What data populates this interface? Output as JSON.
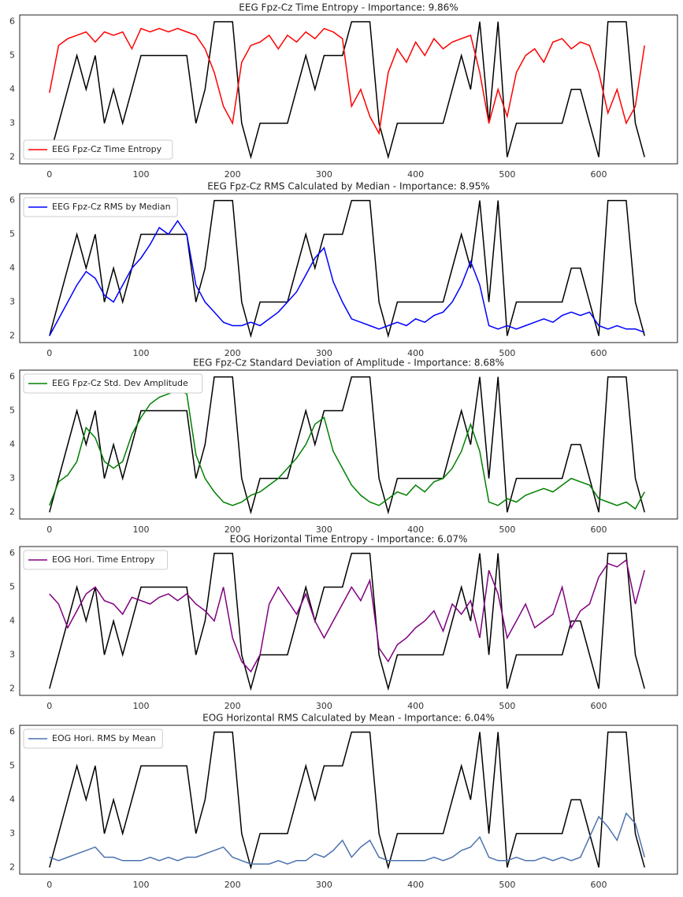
{
  "chart_data": [
    {
      "type": "line",
      "title": "EEG Fpz-Cz Time Entropy - Importance: 9.86%",
      "legend": "lower left",
      "x": [
        0,
        10,
        20,
        30,
        40,
        50,
        60,
        70,
        80,
        90,
        100,
        110,
        120,
        130,
        140,
        150,
        160,
        170,
        180,
        190,
        200,
        210,
        220,
        230,
        240,
        250,
        260,
        270,
        280,
        290,
        300,
        310,
        320,
        330,
        340,
        350,
        360,
        370,
        380,
        390,
        400,
        410,
        420,
        430,
        440,
        450,
        460,
        470,
        480,
        490,
        500,
        510,
        520,
        530,
        540,
        550,
        560,
        570,
        580,
        590,
        600,
        610,
        620,
        630,
        640,
        650
      ],
      "xlim": [
        -32.5,
        686
      ],
      "ylim": [
        1.8,
        6.2
      ],
      "xticks": [
        0,
        100,
        200,
        300,
        400,
        500,
        600
      ],
      "yticks": [
        2,
        3,
        4,
        5,
        6
      ],
      "series": [
        {
          "color": "#000000",
          "values": [
            2,
            3,
            4,
            5,
            4,
            5,
            3,
            4,
            3,
            4,
            5,
            5,
            5,
            5,
            5,
            5,
            3,
            4,
            6,
            6,
            6,
            3,
            2,
            3,
            3,
            3,
            3,
            4,
            5,
            4,
            5,
            5,
            5,
            6,
            6,
            6,
            3,
            2,
            3,
            3,
            3,
            3,
            3,
            3,
            4,
            5,
            4,
            6,
            3,
            6,
            2,
            3,
            3,
            3,
            3,
            3,
            3,
            4,
            4,
            3,
            2,
            6,
            6,
            6,
            3,
            2
          ]
        },
        {
          "name": "EEG Fpz-Cz Time Entropy",
          "color": "#ff0000",
          "values": [
            3.9,
            5.3,
            5.5,
            5.6,
            5.7,
            5.4,
            5.7,
            5.6,
            5.7,
            5.2,
            5.8,
            5.7,
            5.8,
            5.7,
            5.8,
            5.7,
            5.6,
            5.2,
            4.5,
            3.5,
            3.0,
            4.8,
            5.3,
            5.4,
            5.6,
            5.2,
            5.6,
            5.4,
            5.7,
            5.5,
            5.8,
            5.7,
            5.5,
            3.5,
            4.0,
            3.2,
            2.7,
            4.5,
            5.2,
            4.8,
            5.4,
            5.0,
            5.5,
            5.2,
            5.4,
            5.5,
            5.6,
            4.5,
            3.0,
            4.0,
            3.2,
            4.5,
            5.0,
            5.2,
            4.8,
            5.4,
            5.5,
            5.2,
            5.4,
            5.3,
            4.5,
            3.3,
            4.0,
            3.0,
            3.5,
            5.3
          ]
        }
      ]
    },
    {
      "type": "line",
      "title": "EEG Fpz-Cz RMS Calculated by Median - Importance: 8.95%",
      "legend": "upper left",
      "x": [
        0,
        10,
        20,
        30,
        40,
        50,
        60,
        70,
        80,
        90,
        100,
        110,
        120,
        130,
        140,
        150,
        160,
        170,
        180,
        190,
        200,
        210,
        220,
        230,
        240,
        250,
        260,
        270,
        280,
        290,
        300,
        310,
        320,
        330,
        340,
        350,
        360,
        370,
        380,
        390,
        400,
        410,
        420,
        430,
        440,
        450,
        460,
        470,
        480,
        490,
        500,
        510,
        520,
        530,
        540,
        550,
        560,
        570,
        580,
        590,
        600,
        610,
        620,
        630,
        640,
        650
      ],
      "xlim": [
        -32.5,
        686
      ],
      "ylim": [
        1.8,
        6.2
      ],
      "xticks": [
        0,
        100,
        200,
        300,
        400,
        500,
        600
      ],
      "yticks": [
        2,
        3,
        4,
        5,
        6
      ],
      "series": [
        {
          "color": "#000000",
          "values": [
            2,
            3,
            4,
            5,
            4,
            5,
            3,
            4,
            3,
            4,
            5,
            5,
            5,
            5,
            5,
            5,
            3,
            4,
            6,
            6,
            6,
            3,
            2,
            3,
            3,
            3,
            3,
            4,
            5,
            4,
            5,
            5,
            5,
            6,
            6,
            6,
            3,
            2,
            3,
            3,
            3,
            3,
            3,
            3,
            4,
            5,
            4,
            6,
            3,
            6,
            2,
            3,
            3,
            3,
            3,
            3,
            3,
            4,
            4,
            3,
            2,
            6,
            6,
            6,
            3,
            2
          ]
        },
        {
          "name": "EEG Fpz-Cz RMS by Median",
          "color": "#0000ff",
          "values": [
            2.0,
            2.5,
            3.0,
            3.5,
            3.9,
            3.7,
            3.2,
            3.0,
            3.5,
            4.0,
            4.3,
            4.7,
            5.2,
            5.0,
            5.4,
            5.0,
            3.5,
            3.0,
            2.7,
            2.4,
            2.3,
            2.3,
            2.4,
            2.3,
            2.5,
            2.7,
            3.0,
            3.3,
            3.8,
            4.3,
            4.6,
            3.6,
            3.0,
            2.5,
            2.4,
            2.3,
            2.2,
            2.3,
            2.4,
            2.3,
            2.5,
            2.4,
            2.6,
            2.7,
            3.0,
            3.5,
            4.2,
            3.5,
            2.3,
            2.2,
            2.3,
            2.2,
            2.3,
            2.4,
            2.5,
            2.4,
            2.6,
            2.7,
            2.6,
            2.7,
            2.3,
            2.2,
            2.3,
            2.2,
            2.2,
            2.1
          ]
        }
      ]
    },
    {
      "type": "line",
      "title": "EEG Fpz-Cz Standard Deviation of Amplitude - Importance: 8.68%",
      "legend": "upper left",
      "x": [
        0,
        10,
        20,
        30,
        40,
        50,
        60,
        70,
        80,
        90,
        100,
        110,
        120,
        130,
        140,
        150,
        160,
        170,
        180,
        190,
        200,
        210,
        220,
        230,
        240,
        250,
        260,
        270,
        280,
        290,
        300,
        310,
        320,
        330,
        340,
        350,
        360,
        370,
        380,
        390,
        400,
        410,
        420,
        430,
        440,
        450,
        460,
        470,
        480,
        490,
        500,
        510,
        520,
        530,
        540,
        550,
        560,
        570,
        580,
        590,
        600,
        610,
        620,
        630,
        640,
        650
      ],
      "xlim": [
        -32.5,
        686
      ],
      "ylim": [
        1.8,
        6.2
      ],
      "xticks": [
        0,
        100,
        200,
        300,
        400,
        500,
        600
      ],
      "yticks": [
        2,
        3,
        4,
        5,
        6
      ],
      "series": [
        {
          "color": "#000000",
          "values": [
            2,
            3,
            4,
            5,
            4,
            5,
            3,
            4,
            3,
            4,
            5,
            5,
            5,
            5,
            5,
            5,
            3,
            4,
            6,
            6,
            6,
            3,
            2,
            3,
            3,
            3,
            3,
            4,
            5,
            4,
            5,
            5,
            5,
            6,
            6,
            6,
            3,
            2,
            3,
            3,
            3,
            3,
            3,
            3,
            4,
            5,
            4,
            6,
            3,
            6,
            2,
            3,
            3,
            3,
            3,
            3,
            3,
            4,
            4,
            3,
            2,
            6,
            6,
            6,
            3,
            2
          ]
        },
        {
          "name": "EEG Fpz-Cz Std. Dev Amplitude",
          "color": "#008000",
          "values": [
            2.2,
            2.9,
            3.1,
            3.5,
            4.5,
            4.2,
            3.5,
            3.3,
            3.5,
            4.3,
            4.8,
            5.2,
            5.4,
            5.5,
            5.6,
            5.5,
            3.7,
            3.0,
            2.6,
            2.3,
            2.2,
            2.3,
            2.5,
            2.6,
            2.8,
            3.0,
            3.3,
            3.6,
            4.0,
            4.6,
            4.8,
            3.8,
            3.3,
            2.8,
            2.5,
            2.3,
            2.2,
            2.4,
            2.6,
            2.5,
            2.8,
            2.6,
            2.9,
            3.0,
            3.3,
            3.8,
            4.6,
            3.8,
            2.3,
            2.2,
            2.4,
            2.3,
            2.5,
            2.6,
            2.7,
            2.6,
            2.8,
            3.0,
            2.9,
            2.8,
            2.4,
            2.3,
            2.2,
            2.3,
            2.1,
            2.6
          ]
        }
      ]
    },
    {
      "type": "line",
      "title": "EOG Horizontal Time Entropy - Importance: 6.07%",
      "legend": "upper left",
      "x": [
        0,
        10,
        20,
        30,
        40,
        50,
        60,
        70,
        80,
        90,
        100,
        110,
        120,
        130,
        140,
        150,
        160,
        170,
        180,
        190,
        200,
        210,
        220,
        230,
        240,
        250,
        260,
        270,
        280,
        290,
        300,
        310,
        320,
        330,
        340,
        350,
        360,
        370,
        380,
        390,
        400,
        410,
        420,
        430,
        440,
        450,
        460,
        470,
        480,
        490,
        500,
        510,
        520,
        530,
        540,
        550,
        560,
        570,
        580,
        590,
        600,
        610,
        620,
        630,
        640,
        650
      ],
      "xlim": [
        -32.5,
        686
      ],
      "ylim": [
        1.8,
        6.2
      ],
      "xticks": [
        0,
        100,
        200,
        300,
        400,
        500,
        600
      ],
      "yticks": [
        2,
        3,
        4,
        5,
        6
      ],
      "series": [
        {
          "color": "#000000",
          "values": [
            2,
            3,
            4,
            5,
            4,
            5,
            3,
            4,
            3,
            4,
            5,
            5,
            5,
            5,
            5,
            5,
            3,
            4,
            6,
            6,
            6,
            3,
            2,
            3,
            3,
            3,
            3,
            4,
            5,
            4,
            5,
            5,
            5,
            6,
            6,
            6,
            3,
            2,
            3,
            3,
            3,
            3,
            3,
            3,
            4,
            5,
            4,
            6,
            3,
            6,
            2,
            3,
            3,
            3,
            3,
            3,
            3,
            4,
            4,
            3,
            2,
            6,
            6,
            6,
            3,
            2
          ]
        },
        {
          "name": "EOG Hori. Time Entropy",
          "color": "#800080",
          "values": [
            4.8,
            4.5,
            3.8,
            4.3,
            4.8,
            5.0,
            4.6,
            4.5,
            4.2,
            4.7,
            4.6,
            4.5,
            4.7,
            4.8,
            4.6,
            4.8,
            4.5,
            4.3,
            4.0,
            5.0,
            3.5,
            2.8,
            2.5,
            3.0,
            4.5,
            5.0,
            4.6,
            4.2,
            4.8,
            4.0,
            3.5,
            4.0,
            4.5,
            5.0,
            4.6,
            5.2,
            3.2,
            2.8,
            3.3,
            3.5,
            3.8,
            4.0,
            4.3,
            3.7,
            4.5,
            4.2,
            4.6,
            3.5,
            5.5,
            4.8,
            3.5,
            4.0,
            4.5,
            3.8,
            4.0,
            4.2,
            5.0,
            3.8,
            4.3,
            4.5,
            5.3,
            5.7,
            5.6,
            5.8,
            4.5,
            5.5
          ]
        }
      ]
    },
    {
      "type": "line",
      "title": "EOG Horizontal RMS Calculated by Mean - Importance: 6.04%",
      "legend": "upper left",
      "x": [
        0,
        10,
        20,
        30,
        40,
        50,
        60,
        70,
        80,
        90,
        100,
        110,
        120,
        130,
        140,
        150,
        160,
        170,
        180,
        190,
        200,
        210,
        220,
        230,
        240,
        250,
        260,
        270,
        280,
        290,
        300,
        310,
        320,
        330,
        340,
        350,
        360,
        370,
        380,
        390,
        400,
        410,
        420,
        430,
        440,
        450,
        460,
        470,
        480,
        490,
        500,
        510,
        520,
        530,
        540,
        550,
        560,
        570,
        580,
        590,
        600,
        610,
        620,
        630,
        640,
        650
      ],
      "xlim": [
        -32.5,
        686
      ],
      "ylim": [
        1.8,
        6.2
      ],
      "xticks": [
        0,
        100,
        200,
        300,
        400,
        500,
        600
      ],
      "yticks": [
        2,
        3,
        4,
        5,
        6
      ],
      "series": [
        {
          "color": "#000000",
          "values": [
            2,
            3,
            4,
            5,
            4,
            5,
            3,
            4,
            3,
            4,
            5,
            5,
            5,
            5,
            5,
            5,
            3,
            4,
            6,
            6,
            6,
            3,
            2,
            3,
            3,
            3,
            3,
            4,
            5,
            4,
            5,
            5,
            5,
            6,
            6,
            6,
            3,
            2,
            3,
            3,
            3,
            3,
            3,
            3,
            4,
            5,
            4,
            6,
            3,
            6,
            2,
            3,
            3,
            3,
            3,
            3,
            3,
            4,
            4,
            3,
            2,
            6,
            6,
            6,
            3,
            2
          ]
        },
        {
          "name": "EOG Hori. RMS by Mean",
          "color": "#4c72b0",
          "values": [
            2.3,
            2.2,
            2.3,
            2.4,
            2.5,
            2.6,
            2.3,
            2.3,
            2.2,
            2.2,
            2.2,
            2.3,
            2.2,
            2.3,
            2.2,
            2.3,
            2.3,
            2.4,
            2.5,
            2.6,
            2.3,
            2.2,
            2.1,
            2.1,
            2.1,
            2.2,
            2.1,
            2.2,
            2.2,
            2.4,
            2.3,
            2.5,
            2.8,
            2.3,
            2.6,
            2.8,
            2.3,
            2.2,
            2.2,
            2.2,
            2.2,
            2.2,
            2.3,
            2.2,
            2.3,
            2.5,
            2.6,
            2.9,
            2.3,
            2.2,
            2.2,
            2.3,
            2.2,
            2.2,
            2.3,
            2.2,
            2.3,
            2.2,
            2.3,
            2.9,
            3.5,
            3.2,
            2.8,
            3.6,
            3.3,
            2.3
          ]
        }
      ]
    }
  ]
}
